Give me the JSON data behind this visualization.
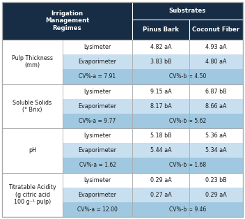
{
  "header_bg": "#162d45",
  "header_text_color": "#ffffff",
  "col1_header": "Irrigation\nManagement\nRegimes",
  "col2_header": "Pinus Bark",
  "col3_header": "Coconut Fiber",
  "substrates_label": "Substrates",
  "row_groups": [
    {
      "label": "Pulp Thickness\n(mm)",
      "rows": [
        {
          "regime": "Lysimeter",
          "pinus": "4.82 aA",
          "coconut": "4.93 aA",
          "shaded": false
        },
        {
          "regime": "Evaporimeter",
          "pinus": "3.83 bB",
          "coconut": "4.80 aA",
          "shaded": true
        },
        {
          "regime": "CV%-a = 7.91",
          "pinus": "CV%-b = 4.50",
          "coconut": "",
          "shaded": false,
          "cv_row": true
        }
      ]
    },
    {
      "label": "Soluble Solids\n(° Brix)",
      "rows": [
        {
          "regime": "Lysimeter",
          "pinus": "9.15 aA",
          "coconut": "6.87 bB",
          "shaded": false
        },
        {
          "regime": "Evaporimeter",
          "pinus": "8.17 bA",
          "coconut": "8.66 aA",
          "shaded": true
        },
        {
          "regime": "CV%-a = 9.77",
          "pinus": "CV%-b = 5.62",
          "coconut": "",
          "shaded": false,
          "cv_row": true
        }
      ]
    },
    {
      "label": "pH",
      "rows": [
        {
          "regime": "Lysimeter",
          "pinus": "5.18 bB",
          "coconut": "5.36 aA",
          "shaded": false
        },
        {
          "regime": "Evaporimeter",
          "pinus": "5.44 aA",
          "coconut": "5.34 aA",
          "shaded": true
        },
        {
          "regime": "CV%-a = 1.62",
          "pinus": "CV%-b = 1.68",
          "coconut": "",
          "shaded": false,
          "cv_row": true
        }
      ]
    },
    {
      "label": "Titratable Acidity\n(g citric acid\n100 g⁻¹ pulp)",
      "rows": [
        {
          "regime": "Lysimeter",
          "pinus": "0.29 aA",
          "coconut": "0.23 bB",
          "shaded": false
        },
        {
          "regime": "Evaporimeter",
          "pinus": "0.27 aA",
          "coconut": "0.29 aA",
          "shaded": true
        },
        {
          "regime": "CV%-a = 12.00",
          "pinus": "CV%-b = 9.46",
          "coconut": "",
          "shaded": false,
          "cv_row": true
        }
      ]
    }
  ],
  "shaded_row_bg": "#c8dff0",
  "cv_row_bg": "#a0c8e0",
  "white_row_bg": "#ffffff",
  "border_color": "#aaaaaa",
  "text_color_dark": "#1a1a1a",
  "figsize": [
    3.52,
    3.14
  ],
  "dpi": 100
}
